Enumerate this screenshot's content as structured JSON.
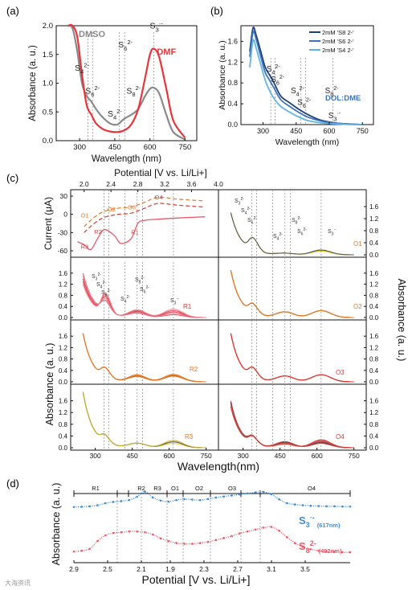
{
  "panel_labels": {
    "a": "(a)",
    "b": "(b)",
    "c": "(c)",
    "d": "(d)"
  },
  "watermark": "大海资讯",
  "colors": {
    "dmso": "#8a8a8a",
    "dmf": "#e8343a",
    "dark_blue": "#1f3f7a",
    "mid_blue": "#3f73b8",
    "light_blue": "#5fb3e6",
    "yellow": "#e8d23a",
    "orange": "#e07a2a",
    "red": "#d9362f",
    "pink": "#e85a6a",
    "blue_curve": "#3b8fd8"
  },
  "chart_data": [
    {
      "id": "a",
      "type": "line",
      "xlabel": "Wavelength (nm)",
      "ylabel": "Absorbance (a. u.)",
      "xlim": [
        200,
        800
      ],
      "ylim": [
        0,
        2.0
      ],
      "xticks": [
        "300",
        "450",
        "600",
        "750"
      ],
      "yticks": [
        "0.0",
        "0.5",
        "1.0",
        "1.5",
        "2.0"
      ],
      "legend": [
        "DMSO",
        "DMF"
      ],
      "annotations": [
        {
          "main": "S",
          "sub": "4",
          "sup": "2-",
          "x": 300,
          "y": 1.22
        },
        {
          "main": "S",
          "sub": "6",
          "sup": "2-",
          "x": 345,
          "y": 0.82
        },
        {
          "main": "S",
          "sub": "4",
          "sup": "2-",
          "x": 440,
          "y": 0.42
        },
        {
          "main": "S",
          "sub": "6",
          "sup": "2-",
          "x": 485,
          "y": 1.62
        },
        {
          "main": "S",
          "sub": "8",
          "sup": "2-",
          "x": 520,
          "y": 0.82
        },
        {
          "main": "S",
          "sub": "3",
          "sup": "·-",
          "x": 620,
          "y": 1.95
        }
      ],
      "guides": [
        335,
        355,
        470,
        492,
        617
      ],
      "series": [
        {
          "name": "DMSO",
          "x": [
            250,
            270,
            290,
            310,
            330,
            350,
            370,
            400,
            430,
            460,
            490,
            520,
            550,
            580,
            600,
            617,
            640,
            670,
            700,
            750
          ],
          "y": [
            2.0,
            1.95,
            1.55,
            1.0,
            0.78,
            0.68,
            0.55,
            0.4,
            0.3,
            0.28,
            0.38,
            0.45,
            0.55,
            0.78,
            0.9,
            0.92,
            0.82,
            0.45,
            0.15,
            0.02
          ]
        },
        {
          "name": "DMF",
          "x": [
            250,
            270,
            290,
            310,
            330,
            350,
            370,
            400,
            430,
            460,
            490,
            520,
            550,
            580,
            600,
            617,
            640,
            670,
            700,
            750
          ],
          "y": [
            2.0,
            2.0,
            1.8,
            1.15,
            0.62,
            0.45,
            0.3,
            0.2,
            0.16,
            0.15,
            0.18,
            0.28,
            0.55,
            1.1,
            1.5,
            1.6,
            1.45,
            0.9,
            0.35,
            0.05
          ]
        }
      ]
    },
    {
      "id": "b",
      "type": "line",
      "xlabel": "Wavelength (nm)",
      "ylabel": "Absorbance (a. u.)",
      "xlim": [
        200,
        800
      ],
      "ylim": [
        0,
        1.9
      ],
      "xticks": [
        "300",
        "450",
        "600",
        "750"
      ],
      "yticks": [
        "0.0",
        "0.4",
        "0.8",
        "1.2",
        "1.6"
      ],
      "legend": [
        "2mM 'S8 2-'",
        "2mM 'S6 2-'",
        "2mM 'S4 2-'"
      ],
      "solvent_label": "DOL:DME",
      "annotations": [
        {
          "main": "S",
          "sub": "4",
          "sup": "2-",
          "x": 330,
          "y": 1.02
        },
        {
          "main": "S",
          "sub": "6",
          "sup": "2-",
          "x": 350,
          "y": 0.82
        },
        {
          "main": "S",
          "sub": "4",
          "sup": "2-",
          "x": 440,
          "y": 0.6
        },
        {
          "main": "S",
          "sub": "6",
          "sup": "2-",
          "x": 470,
          "y": 0.38
        },
        {
          "main": "S",
          "sub": "8",
          "sup": "2-",
          "x": 595,
          "y": 0.6
        },
        {
          "main": "S",
          "sub": "3",
          "sup": "·-",
          "x": 610,
          "y": 0.12
        }
      ],
      "guides": [
        335,
        355,
        470,
        492,
        617
      ],
      "series": [
        {
          "name": "2mM 'S8 2-'",
          "x": [
            240,
            255,
            270,
            290,
            310,
            330,
            350,
            380,
            420,
            460,
            500,
            550,
            600,
            650,
            700,
            750
          ],
          "y": [
            1.4,
            1.86,
            1.7,
            1.4,
            1.1,
            0.95,
            0.8,
            0.55,
            0.42,
            0.3,
            0.2,
            0.1,
            0.05,
            0.02,
            0.01,
            0.0
          ]
        },
        {
          "name": "2mM 'S6 2-'",
          "x": [
            240,
            255,
            270,
            290,
            310,
            330,
            350,
            380,
            420,
            460,
            500,
            550,
            600,
            650,
            700,
            750
          ],
          "y": [
            1.3,
            1.78,
            1.62,
            1.3,
            1.0,
            0.85,
            0.7,
            0.48,
            0.35,
            0.24,
            0.15,
            0.08,
            0.04,
            0.02,
            0.01,
            0.0
          ]
        },
        {
          "name": "2mM 'S4 2-'",
          "x": [
            240,
            255,
            270,
            290,
            310,
            330,
            350,
            380,
            420,
            460,
            500,
            550,
            600,
            650,
            700,
            750
          ],
          "y": [
            1.1,
            1.62,
            1.45,
            1.15,
            0.85,
            0.65,
            0.5,
            0.35,
            0.24,
            0.15,
            0.08,
            0.04,
            0.02,
            0.01,
            0.0,
            0.0
          ]
        }
      ]
    },
    {
      "id": "c",
      "type": "line",
      "xlabel": "Wavelength(nm)",
      "ylabel_left": "Absorbance (a. u.)",
      "ylabel_right": "Absorbance (a. u.)",
      "cv_xlabel": "Potential [V vs. Li/Li+]",
      "cv_ylabel": "Current (μA)",
      "cv_xticks": [
        "2.0",
        "2.4",
        "2.8",
        "3.2",
        "3.6",
        "4.0"
      ],
      "cv_yticks": [
        "30",
        "0",
        "-30",
        "-60"
      ],
      "xticks": [
        "300",
        "450",
        "600",
        "750"
      ],
      "yticks": [
        "0.0",
        "0.4",
        "0.8",
        "1.2",
        "1.6"
      ],
      "yticks_right": [
        "0.0",
        "0.4",
        "0.8",
        "1.2",
        "1.6"
      ],
      "cv_labels": [
        "O1",
        "O2",
        "O3",
        "O4",
        "R1",
        "R2",
        "R3"
      ],
      "right_top_annotations": [
        {
          "main": "S",
          "sub": "3",
          "sup": "2-"
        },
        {
          "main": "S",
          "sub": "4",
          "sup": "2-"
        },
        {
          "main": "S",
          "sub": "6",
          "sup": "2-"
        },
        {
          "main": "S",
          "sub": "4",
          "sup": "2-"
        },
        {
          "main": "S",
          "sub": "8",
          "sup": "2-"
        },
        {
          "main": "S",
          "sub": "6",
          "sup": "2-"
        },
        {
          "main": "S",
          "sub": "3",
          "sup": "·-"
        }
      ],
      "left_mid_annotations": [
        {
          "main": "S",
          "sub": "3",
          "sup": "2-"
        },
        {
          "main": "S",
          "sub": "4",
          "sup": "2-"
        },
        {
          "main": "S",
          "sub": "6",
          "sup": "2-"
        },
        {
          "main": "S",
          "sub": "4",
          "sup": "2-"
        },
        {
          "main": "S",
          "sub": "8",
          "sup": "2-"
        },
        {
          "main": "S",
          "sub": "6",
          "sup": "2-"
        },
        {
          "main": "S",
          "sub": "3",
          "sup": "·-"
        }
      ],
      "panel_tags": [
        "R1",
        "R2",
        "R3",
        "O1",
        "O2",
        "O3",
        "O4"
      ]
    },
    {
      "id": "d",
      "type": "line",
      "xlabel": "Potential [V vs. Li/Li+]",
      "ylabel": "Absorbance (a. u.)",
      "xticks": [
        "2.9",
        "2.5",
        "2.1",
        "1.9",
        "2.3",
        "2.7",
        "3.1",
        "3.5"
      ],
      "regions": [
        "R1",
        "R2",
        "R3",
        "O1",
        "O2",
        "O3",
        "O4"
      ],
      "series": [
        {
          "name": "S3 ·- (617nm)",
          "label_main": "S",
          "label_sub": "3",
          "label_sup": "·-",
          "label_note": "(617nm)",
          "values": [
            0.35,
            0.36,
            0.38,
            0.42,
            0.5,
            0.55,
            0.58,
            0.62,
            0.75,
            0.95,
            0.72,
            0.6,
            0.56,
            0.62,
            0.66,
            0.64,
            0.62,
            0.66,
            0.72,
            0.76,
            0.8,
            0.84,
            0.88,
            0.92,
            0.94,
            0.85,
            0.65,
            0.5,
            0.45,
            0.42,
            0.4,
            0.39,
            0.38,
            0.38,
            0.37,
            0.37
          ]
        },
        {
          "name": "S8 2- (492nm)",
          "label_main": "S",
          "label_sub": "8",
          "label_sup": "2-",
          "label_note": "(492nm)",
          "values": [
            0.08,
            0.1,
            0.15,
            0.35,
            0.5,
            0.56,
            0.58,
            0.6,
            0.6,
            0.58,
            0.52,
            0.42,
            0.35,
            0.3,
            0.28,
            0.28,
            0.3,
            0.33,
            0.38,
            0.43,
            0.48,
            0.55,
            0.6,
            0.65,
            0.7,
            0.72,
            0.62,
            0.45,
            0.3,
            0.2,
            0.14,
            0.1,
            0.08,
            0.07,
            0.06,
            0.06
          ]
        }
      ]
    }
  ]
}
